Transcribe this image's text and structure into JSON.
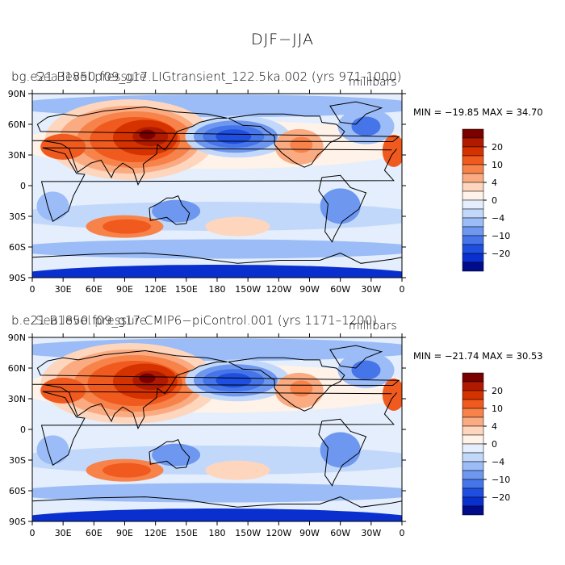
{
  "main_title": "DJF−JJA",
  "panels": [
    {
      "title": "bg.e21.B1850.f09_g17.LIGtransient_122.5ka.002 (yrs 971-1000)",
      "title_overlay": "Sea level pressure",
      "units": "millibars",
      "minmax": "MIN = −19.85  MAX =  34.70"
    },
    {
      "title": "b.e21.B1850.f09_g17.CMIP6−piControl.001 (yrs 1171–1200)",
      "title_overlay": "Sea level pressure",
      "units": "millibars",
      "minmax": "MIN = −21.74  MAX =  30.53"
    }
  ],
  "axes": {
    "lat_labels": [
      "90N",
      "60N",
      "30N",
      "0",
      "30S",
      "60S",
      "90S"
    ],
    "lon_labels": [
      "0",
      "30E",
      "60E",
      "90E",
      "120E",
      "150E",
      "180",
      "150W",
      "120W",
      "90W",
      "60W",
      "30W",
      "0"
    ]
  },
  "colorbar": {
    "labels": [
      "20",
      "10",
      "4",
      "0",
      "−4",
      "−10",
      "−20"
    ],
    "colors": [
      "#7a0000",
      "#b01a00",
      "#d53200",
      "#f05a1e",
      "#f7834a",
      "#fbab82",
      "#fdd6bd",
      "#fff2e8",
      "#e4eefc",
      "#c2d8fb",
      "#9bbcf7",
      "#6e97f0",
      "#4575e8",
      "#1f4fe0",
      "#0a2fcf",
      "#000c8c"
    ]
  }
}
